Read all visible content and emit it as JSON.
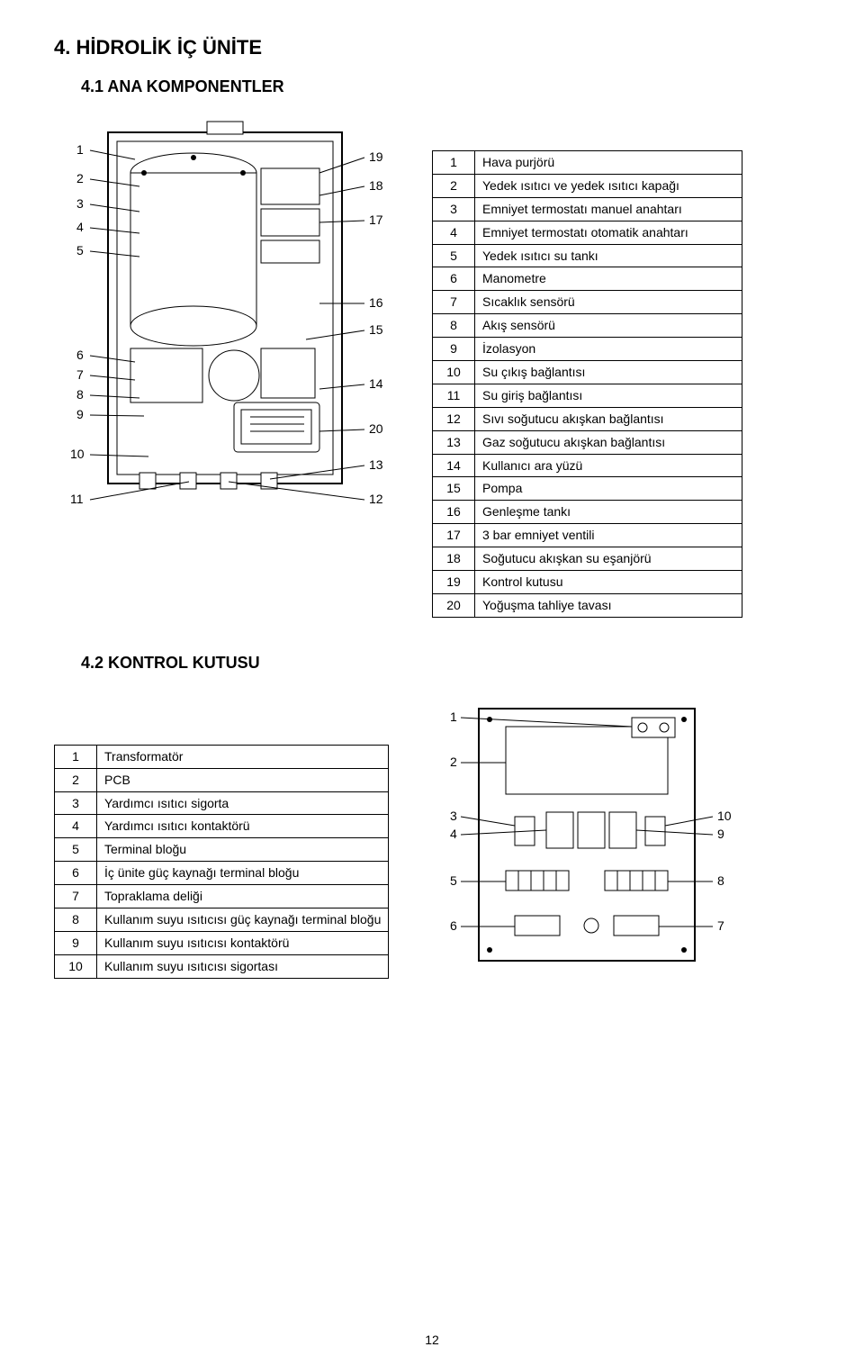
{
  "page_number": "12",
  "section4": {
    "title": "4. HİDROLİK İÇ ÜNİTE",
    "sub41": {
      "title": "4.1 ANA KOMPONENTLER",
      "table_rows": [
        {
          "n": "1",
          "d": "Hava purjörü"
        },
        {
          "n": "2",
          "d": "Yedek ısıtıcı ve yedek ısıtıcı kapağı"
        },
        {
          "n": "3",
          "d": "Emniyet termostatı manuel anahtarı"
        },
        {
          "n": "4",
          "d": "Emniyet termostatı otomatik anahtarı"
        },
        {
          "n": "5",
          "d": "Yedek ısıtıcı su tankı"
        },
        {
          "n": "6",
          "d": "Manometre"
        },
        {
          "n": "7",
          "d": "Sıcaklık sensörü"
        },
        {
          "n": "8",
          "d": "Akış sensörü"
        },
        {
          "n": "9",
          "d": "İzolasyon"
        },
        {
          "n": "10",
          "d": "Su çıkış bağlantısı"
        },
        {
          "n": "11",
          "d": "Su giriş bağlantısı"
        },
        {
          "n": "12",
          "d": "Sıvı soğutucu akışkan bağlantısı"
        },
        {
          "n": "13",
          "d": "Gaz soğutucu akışkan bağlantısı"
        },
        {
          "n": "14",
          "d": "Kullanıcı ara yüzü"
        },
        {
          "n": "15",
          "d": "Pompa"
        },
        {
          "n": "16",
          "d": "Genleşme tankı"
        },
        {
          "n": "17",
          "d": "3 bar emniyet ventili"
        },
        {
          "n": "18",
          "d": "Soğutucu akışkan su eşanjörü"
        },
        {
          "n": "19",
          "d": "Kontrol kutusu"
        },
        {
          "n": "20",
          "d": "Yoğuşma tahliye tavası"
        }
      ],
      "figure": {
        "left_labels": [
          "1",
          "2",
          "3",
          "4",
          "5",
          "6",
          "7",
          "8",
          "9",
          "10",
          "11"
        ],
        "right_labels": [
          "19",
          "18",
          "17",
          "16",
          "15",
          "14",
          "20",
          "13",
          "12"
        ],
        "stroke": "#000000",
        "fill": "#ffffff"
      }
    },
    "sub42": {
      "title": "4.2 KONTROL KUTUSU",
      "table_rows": [
        {
          "n": "1",
          "d": "Transformatör"
        },
        {
          "n": "2",
          "d": "PCB"
        },
        {
          "n": "3",
          "d": "Yardımcı ısıtıcı sigorta"
        },
        {
          "n": "4",
          "d": "Yardımcı ısıtıcı kontaktörü"
        },
        {
          "n": "5",
          "d": "Terminal bloğu"
        },
        {
          "n": "6",
          "d": "İç ünite güç kaynağı terminal bloğu"
        },
        {
          "n": "7",
          "d": "Topraklama deliği"
        },
        {
          "n": "8",
          "d": "Kullanım suyu ısıtıcısı güç kaynağı terminal bloğu"
        },
        {
          "n": "9",
          "d": "Kullanım suyu ısıtıcısı kontaktörü"
        },
        {
          "n": "10",
          "d": "Kullanım suyu ısıtıcısı sigortası"
        }
      ],
      "figure": {
        "left_labels": [
          "1",
          "2",
          "3",
          "4",
          "5",
          "6"
        ],
        "right_labels": [
          "10",
          "9",
          "8",
          "7"
        ],
        "stroke": "#000000",
        "fill": "#ffffff"
      }
    }
  }
}
